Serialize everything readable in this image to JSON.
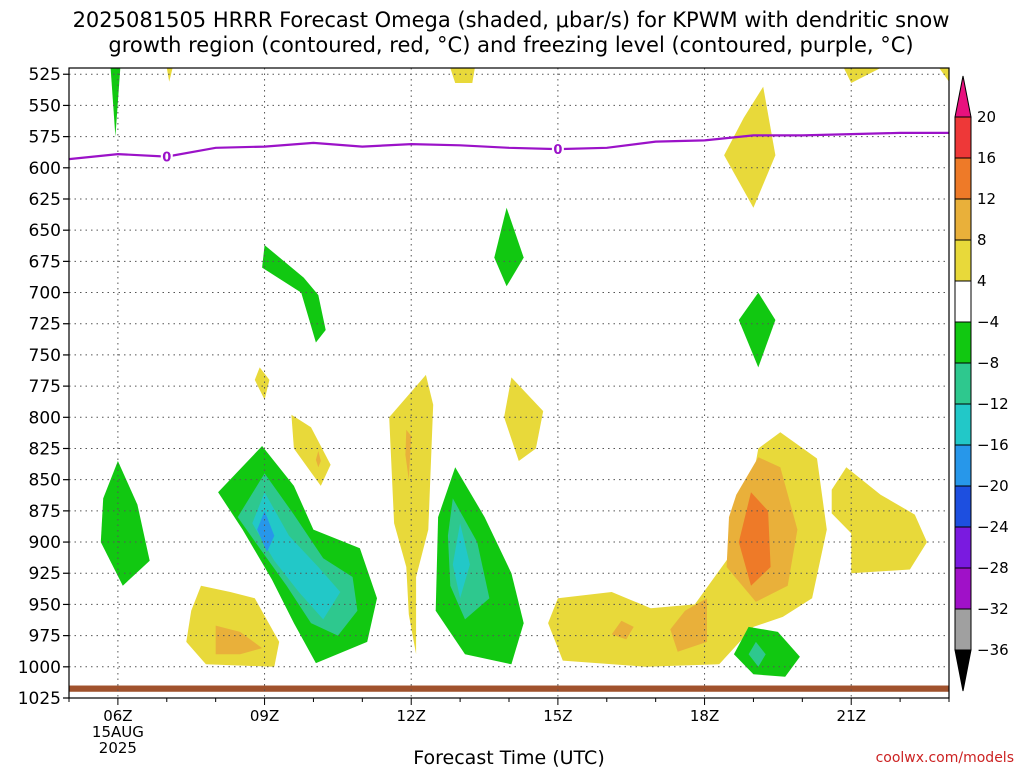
{
  "title_line1": "2025081505 HRRR Forecast Omega (shaded, μbar/s) for KPWM with dendritic snow",
  "title_line2": "growth region (contoured, red, °C) and freezing level (contoured, purple, °C)",
  "credit": "coolwx.com/models",
  "chart_data": {
    "type": "heatmap",
    "xlabel": "Forecast Time (UTC)",
    "ylabel": "",
    "x_range_hours": [
      5,
      23
    ],
    "x_ticks": [
      {
        "hour": 6,
        "label": "06Z",
        "sub": [
          "15AUG",
          "2025"
        ]
      },
      {
        "hour": 9,
        "label": "09Z",
        "sub": []
      },
      {
        "hour": 12,
        "label": "12Z",
        "sub": []
      },
      {
        "hour": 15,
        "label": "15Z",
        "sub": []
      },
      {
        "hour": 18,
        "label": "18Z",
        "sub": []
      },
      {
        "hour": 21,
        "label": "21Z",
        "sub": []
      }
    ],
    "y_range_hpa": [
      520,
      1025
    ],
    "y_ticks": [
      525,
      550,
      575,
      600,
      625,
      650,
      675,
      700,
      725,
      750,
      775,
      800,
      825,
      850,
      875,
      900,
      925,
      950,
      975,
      1000,
      1025
    ],
    "colorbar": {
      "labels": [
        "20",
        "16",
        "12",
        "8",
        "4",
        "−4",
        "−8",
        "−12",
        "−16",
        "−20",
        "−24",
        "−28",
        "−32",
        "−36"
      ],
      "colors": [
        "#e8117e",
        "#ee3838",
        "#ee7a28",
        "#e9b03a",
        "#e8d93a",
        "#ffffff",
        "#11c811",
        "#2ec88e",
        "#22c8c8",
        "#2797ea",
        "#1d4fe0",
        "#7a1ae0",
        "#a011c8",
        "#a0a0a0",
        "#000000"
      ]
    },
    "freezing_level": {
      "color": "#9b12c8",
      "label": "0",
      "points": [
        [
          5,
          593
        ],
        [
          6,
          589
        ],
        [
          7,
          591
        ],
        [
          8,
          584
        ],
        [
          9,
          583
        ],
        [
          10,
          580
        ],
        [
          11,
          583
        ],
        [
          12,
          581
        ],
        [
          13,
          582
        ],
        [
          14,
          584
        ],
        [
          15,
          585
        ],
        [
          16,
          584
        ],
        [
          17,
          579
        ],
        [
          18,
          578
        ],
        [
          19,
          574
        ],
        [
          20,
          574
        ],
        [
          21,
          573
        ],
        [
          22,
          572
        ],
        [
          23,
          572
        ]
      ],
      "label_hours": [
        7,
        15
      ]
    },
    "omega_regions": [
      {
        "level": "-4",
        "color": "#11c811",
        "pts": [
          [
            5.85,
            520
          ],
          [
            6.05,
            520
          ],
          [
            5.95,
            575
          ]
        ]
      },
      {
        "level": "4",
        "color": "#e8d93a",
        "pts": [
          [
            7.0,
            520
          ],
          [
            7.12,
            520
          ],
          [
            7.05,
            531
          ]
        ]
      },
      {
        "level": "4",
        "color": "#e8d93a",
        "pts": [
          [
            12.8,
            520
          ],
          [
            13.3,
            520
          ],
          [
            13.25,
            532
          ],
          [
            12.9,
            532
          ]
        ]
      },
      {
        "level": "4",
        "color": "#e8d93a",
        "pts": [
          [
            20.85,
            520
          ],
          [
            21.6,
            520
          ],
          [
            21.0,
            532
          ]
        ]
      },
      {
        "level": "4",
        "color": "#e8d93a",
        "pts": [
          [
            22.8,
            520
          ],
          [
            23.0,
            520
          ],
          [
            23.0,
            531
          ]
        ]
      },
      {
        "level": "4",
        "color": "#e8d93a",
        "pts": [
          [
            19.2,
            535
          ],
          [
            19.45,
            590
          ],
          [
            19.0,
            632
          ],
          [
            18.4,
            590
          ],
          [
            18.8,
            560
          ]
        ]
      },
      {
        "level": "-4",
        "color": "#11c811",
        "pts": [
          [
            9.0,
            662
          ],
          [
            9.8,
            688
          ],
          [
            10.1,
            702
          ],
          [
            10.25,
            730
          ],
          [
            10.05,
            740
          ],
          [
            9.75,
            700
          ],
          [
            8.95,
            680
          ]
        ]
      },
      {
        "level": "-4",
        "color": "#11c811",
        "pts": [
          [
            13.95,
            632
          ],
          [
            14.3,
            672
          ],
          [
            13.95,
            695
          ],
          [
            13.7,
            672
          ]
        ]
      },
      {
        "level": "-4",
        "color": "#11c811",
        "pts": [
          [
            19.1,
            700
          ],
          [
            19.45,
            722
          ],
          [
            19.1,
            760
          ],
          [
            18.7,
            722
          ]
        ]
      },
      {
        "level": "4",
        "color": "#e8d93a",
        "pts": [
          [
            8.9,
            760
          ],
          [
            9.1,
            770
          ],
          [
            9.0,
            786
          ],
          [
            8.8,
            770
          ]
        ]
      },
      {
        "level": "4",
        "color": "#e8d93a",
        "pts": [
          [
            9.55,
            798
          ],
          [
            9.95,
            808
          ],
          [
            10.35,
            838
          ],
          [
            10.15,
            855
          ],
          [
            9.6,
            825
          ]
        ]
      },
      {
        "level": "4",
        "color": "#e8d93a",
        "pts": [
          [
            12.3,
            766
          ],
          [
            12.45,
            790
          ],
          [
            12.35,
            890
          ],
          [
            12.1,
            928
          ],
          [
            12.1,
            990
          ],
          [
            11.95,
            958
          ],
          [
            11.9,
            920
          ],
          [
            11.65,
            885
          ],
          [
            11.55,
            800
          ]
        ]
      },
      {
        "level": "4",
        "color": "#e8d93a",
        "pts": [
          [
            14.05,
            768
          ],
          [
            14.7,
            795
          ],
          [
            14.55,
            825
          ],
          [
            14.2,
            835
          ],
          [
            13.9,
            800
          ]
        ]
      },
      {
        "level": "-4",
        "color": "#11c811",
        "pts": [
          [
            6.0,
            835
          ],
          [
            6.4,
            870
          ],
          [
            6.65,
            915
          ],
          [
            6.1,
            935
          ],
          [
            5.65,
            900
          ],
          [
            5.7,
            865
          ]
        ]
      },
      {
        "level": "-4",
        "color": "#11c811",
        "pts": [
          [
            8.95,
            823
          ],
          [
            9.6,
            855
          ],
          [
            10.0,
            890
          ],
          [
            10.95,
            905
          ],
          [
            11.3,
            945
          ],
          [
            11.1,
            980
          ],
          [
            10.05,
            997
          ],
          [
            9.6,
            965
          ],
          [
            9.15,
            930
          ],
          [
            8.55,
            890
          ],
          [
            8.05,
            860
          ]
        ]
      },
      {
        "level": "-8",
        "color": "#2ec88e",
        "pts": [
          [
            9.0,
            845
          ],
          [
            9.6,
            878
          ],
          [
            10.2,
            913
          ],
          [
            10.8,
            928
          ],
          [
            10.9,
            955
          ],
          [
            10.5,
            975
          ],
          [
            9.95,
            965
          ],
          [
            9.45,
            935
          ],
          [
            8.9,
            905
          ],
          [
            8.45,
            880
          ]
        ]
      },
      {
        "level": "-12",
        "color": "#22c8c8",
        "pts": [
          [
            9.0,
            860
          ],
          [
            9.5,
            895
          ],
          [
            10.1,
            920
          ],
          [
            10.55,
            940
          ],
          [
            10.2,
            962
          ],
          [
            9.7,
            940
          ],
          [
            9.2,
            915
          ],
          [
            8.75,
            885
          ]
        ]
      },
      {
        "level": "-16",
        "color": "#2797ea",
        "pts": [
          [
            9.0,
            875
          ],
          [
            9.2,
            895
          ],
          [
            9.05,
            908
          ],
          [
            8.85,
            890
          ]
        ]
      },
      {
        "level": "-4",
        "color": "#11c811",
        "pts": [
          [
            12.9,
            840
          ],
          [
            13.5,
            880
          ],
          [
            14.05,
            925
          ],
          [
            14.3,
            965
          ],
          [
            14.05,
            998
          ],
          [
            13.1,
            990
          ],
          [
            12.5,
            955
          ],
          [
            12.55,
            880
          ]
        ]
      },
      {
        "level": "-8",
        "color": "#2ec88e",
        "pts": [
          [
            12.85,
            865
          ],
          [
            13.35,
            900
          ],
          [
            13.6,
            945
          ],
          [
            13.1,
            962
          ],
          [
            12.8,
            935
          ],
          [
            12.75,
            895
          ]
        ]
      },
      {
        "level": "-12",
        "color": "#22c8c8",
        "pts": [
          [
            13.0,
            885
          ],
          [
            13.2,
            918
          ],
          [
            13.0,
            945
          ],
          [
            12.85,
            918
          ]
        ]
      },
      {
        "level": "4",
        "color": "#e8d93a",
        "pts": [
          [
            7.7,
            935
          ],
          [
            8.3,
            940
          ],
          [
            8.8,
            945
          ],
          [
            9.3,
            980
          ],
          [
            9.2,
            1000
          ],
          [
            7.8,
            998
          ],
          [
            7.4,
            980
          ],
          [
            7.5,
            955
          ]
        ]
      },
      {
        "level": "8",
        "color": "#e9b03a",
        "pts": [
          [
            8.0,
            967
          ],
          [
            8.5,
            972
          ],
          [
            8.95,
            985
          ],
          [
            8.5,
            990
          ],
          [
            8.0,
            990
          ]
        ]
      },
      {
        "level": "4",
        "color": "#e8d93a",
        "pts": [
          [
            15.0,
            945
          ],
          [
            16.1,
            940
          ],
          [
            16.9,
            953
          ],
          [
            17.8,
            950
          ],
          [
            18.5,
            912
          ],
          [
            18.9,
            868
          ],
          [
            19.1,
            825
          ],
          [
            19.55,
            812
          ],
          [
            20.3,
            833
          ],
          [
            20.5,
            890
          ],
          [
            20.2,
            945
          ],
          [
            19.6,
            960
          ],
          [
            19.0,
            968
          ],
          [
            18.3,
            998
          ],
          [
            16.8,
            1000
          ],
          [
            15.1,
            995
          ],
          [
            14.8,
            965
          ]
        ]
      },
      {
        "level": "8",
        "color": "#e9b03a",
        "pts": [
          [
            18.65,
            862
          ],
          [
            19.1,
            832
          ],
          [
            19.55,
            840
          ],
          [
            19.9,
            890
          ],
          [
            19.7,
            935
          ],
          [
            19.05,
            948
          ],
          [
            18.45,
            920
          ],
          [
            18.5,
            880
          ]
        ]
      },
      {
        "level": "12",
        "color": "#ee7a28",
        "pts": [
          [
            18.95,
            860
          ],
          [
            19.3,
            875
          ],
          [
            19.35,
            920
          ],
          [
            18.95,
            935
          ],
          [
            18.7,
            900
          ]
        ]
      },
      {
        "level": "8",
        "color": "#e9b03a",
        "pts": [
          [
            17.6,
            955
          ],
          [
            18.05,
            945
          ],
          [
            18.05,
            980
          ],
          [
            17.45,
            988
          ],
          [
            17.3,
            970
          ]
        ]
      },
      {
        "level": "8",
        "color": "#e9b03a",
        "pts": [
          [
            16.3,
            963
          ],
          [
            16.55,
            968
          ],
          [
            16.4,
            978
          ],
          [
            16.1,
            974
          ]
        ]
      },
      {
        "level": "8",
        "color": "#e9b03a",
        "pts": [
          [
            11.9,
            810
          ],
          [
            12.0,
            815
          ],
          [
            11.95,
            850
          ],
          [
            11.88,
            830
          ]
        ]
      },
      {
        "level": "8",
        "color": "#e9b03a",
        "pts": [
          [
            10.1,
            827
          ],
          [
            10.15,
            835
          ],
          [
            10.1,
            840
          ],
          [
            10.05,
            834
          ]
        ]
      },
      {
        "level": "-4",
        "color": "#11c811",
        "pts": [
          [
            18.9,
            968
          ],
          [
            19.5,
            972
          ],
          [
            19.95,
            992
          ],
          [
            19.65,
            1008
          ],
          [
            19.0,
            1006
          ],
          [
            18.6,
            990
          ]
        ]
      },
      {
        "level": "-8",
        "color": "#2ec88e",
        "pts": [
          [
            19.05,
            980
          ],
          [
            19.25,
            990
          ],
          [
            19.1,
            1000
          ],
          [
            18.9,
            990
          ]
        ]
      },
      {
        "level": "4",
        "color": "#e8d93a",
        "pts": [
          [
            20.9,
            840
          ],
          [
            21.6,
            862
          ],
          [
            22.3,
            878
          ],
          [
            22.55,
            900
          ],
          [
            22.2,
            922
          ],
          [
            21.0,
            925
          ],
          [
            21.0,
            893
          ],
          [
            20.6,
            877
          ],
          [
            20.6,
            858
          ]
        ]
      }
    ],
    "ground": {
      "color": "#a0522d",
      "top_hpa": 1015,
      "bottom_hpa": 1020
    }
  }
}
